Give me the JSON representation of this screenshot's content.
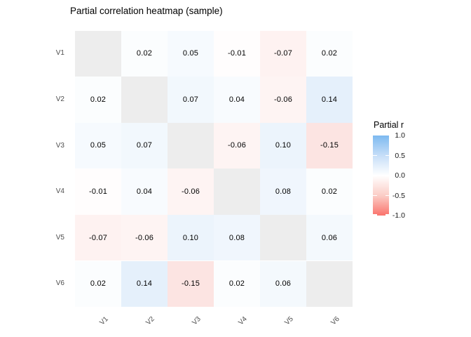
{
  "title": "Partial correlation heatmap (sample)",
  "chart_data": {
    "type": "heatmap",
    "title": "Partial correlation heatmap (sample)",
    "rows": [
      "V1",
      "V2",
      "V3",
      "V4",
      "V5",
      "V6"
    ],
    "cols": [
      "V1",
      "V2",
      "V3",
      "V4",
      "V5",
      "V6"
    ],
    "matrix": [
      [
        null,
        0.02,
        0.05,
        -0.01,
        -0.07,
        0.02
      ],
      [
        0.02,
        null,
        0.07,
        0.04,
        -0.06,
        0.14
      ],
      [
        0.05,
        0.07,
        null,
        -0.06,
        0.1,
        -0.15
      ],
      [
        -0.01,
        0.04,
        -0.06,
        null,
        0.08,
        0.02
      ],
      [
        -0.07,
        -0.06,
        0.1,
        0.08,
        null,
        0.06
      ],
      [
        0.02,
        0.14,
        -0.15,
        0.02,
        0.06,
        null
      ]
    ],
    "value_decimals": 2,
    "diagonal": "NA (blank gray)",
    "legend": {
      "title": "Partial r",
      "position": "right",
      "limits": [
        -1.0,
        1.0
      ],
      "breaks": [
        1.0,
        0.5,
        0.0,
        -0.5,
        -1.0
      ],
      "tick_labels": [
        "1.0",
        "0.5",
        "0.0",
        "-0.5",
        "-1.0"
      ]
    },
    "colors": {
      "legend_high_blue": "#7DB9F0",
      "legend_quarter_blue": "#C6DEF8",
      "legend_mid_white": "#FFFFFF",
      "legend_quarter_red": "#FBCDC6",
      "legend_low_red": "#FA736C",
      "cell_mix_blue": "#4594E2",
      "cell_mix_red": "#EB4B3E",
      "na_cell_gray": "#EDEDED",
      "axis_text_gray": "#4D4D4D",
      "background": "#FFFFFF"
    },
    "grid_lines": false,
    "x_tick_angle": 45
  }
}
